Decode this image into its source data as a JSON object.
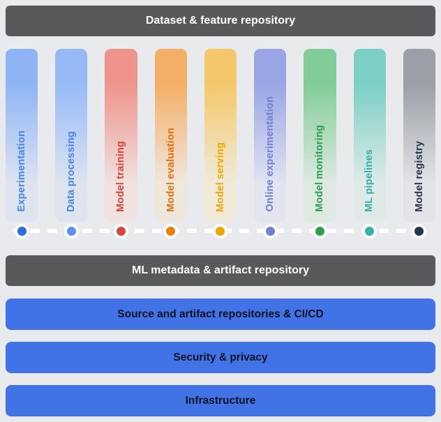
{
  "colors": {
    "background": "#e8eaed",
    "dark_bar_bg": "#58595b",
    "dark_bar_text": "#ffffff",
    "blue_bar_bg": "#4273e6",
    "blue_bar_text": "#0b1220",
    "connector_line": "#ffffff"
  },
  "top_bar": {
    "label": "Dataset & feature repository"
  },
  "columns": [
    {
      "label": "Experimentation",
      "top_color": "#8fb4f6",
      "fade_color": "#dde4f0",
      "text_color": "#4285f4",
      "dot_color": "#2e6de0"
    },
    {
      "label": "Data processing",
      "top_color": "#97baf7",
      "fade_color": "#dde4f0",
      "text_color": "#4285f4",
      "dot_color": "#5b93f2"
    },
    {
      "label": "Model training",
      "top_color": "#ee948b",
      "fade_color": "#efe2e1",
      "text_color": "#e0402f",
      "dot_color": "#d9453c"
    },
    {
      "label": "Model evaluation",
      "top_color": "#f3ae67",
      "fade_color": "#f0e7dc",
      "text_color": "#e8710a",
      "dot_color": "#e8820c"
    },
    {
      "label": "Model serving",
      "top_color": "#f4c76b",
      "fade_color": "#f1ead9",
      "text_color": "#f2a600",
      "dot_color": "#f2a600"
    },
    {
      "label": "Online experimentation",
      "top_color": "#99a5e4",
      "fade_color": "#e2e4f0",
      "text_color": "#6f80d5",
      "dot_color": "#7381d0"
    },
    {
      "label": "Model monitoring",
      "top_color": "#82cc98",
      "fade_color": "#deeae1",
      "text_color": "#2aa04f",
      "dot_color": "#2f9e4f"
    },
    {
      "label": "ML pipelines",
      "top_color": "#7bcfc5",
      "fade_color": "#dfeae8",
      "text_color": "#30b1a5",
      "dot_color": "#35b2a6"
    },
    {
      "label": "Model registry",
      "top_color": "#9aa0a6",
      "fade_color": "#e2e4e8",
      "text_color": "#25364e",
      "dot_color": "#25364e"
    }
  ],
  "metadata_bar": {
    "label": "ML metadata & artifact repository"
  },
  "bottom_bars": [
    {
      "label": "Source and artifact repositories & CI/CD"
    },
    {
      "label": "Security & privacy"
    },
    {
      "label": "Infrastructure"
    }
  ]
}
